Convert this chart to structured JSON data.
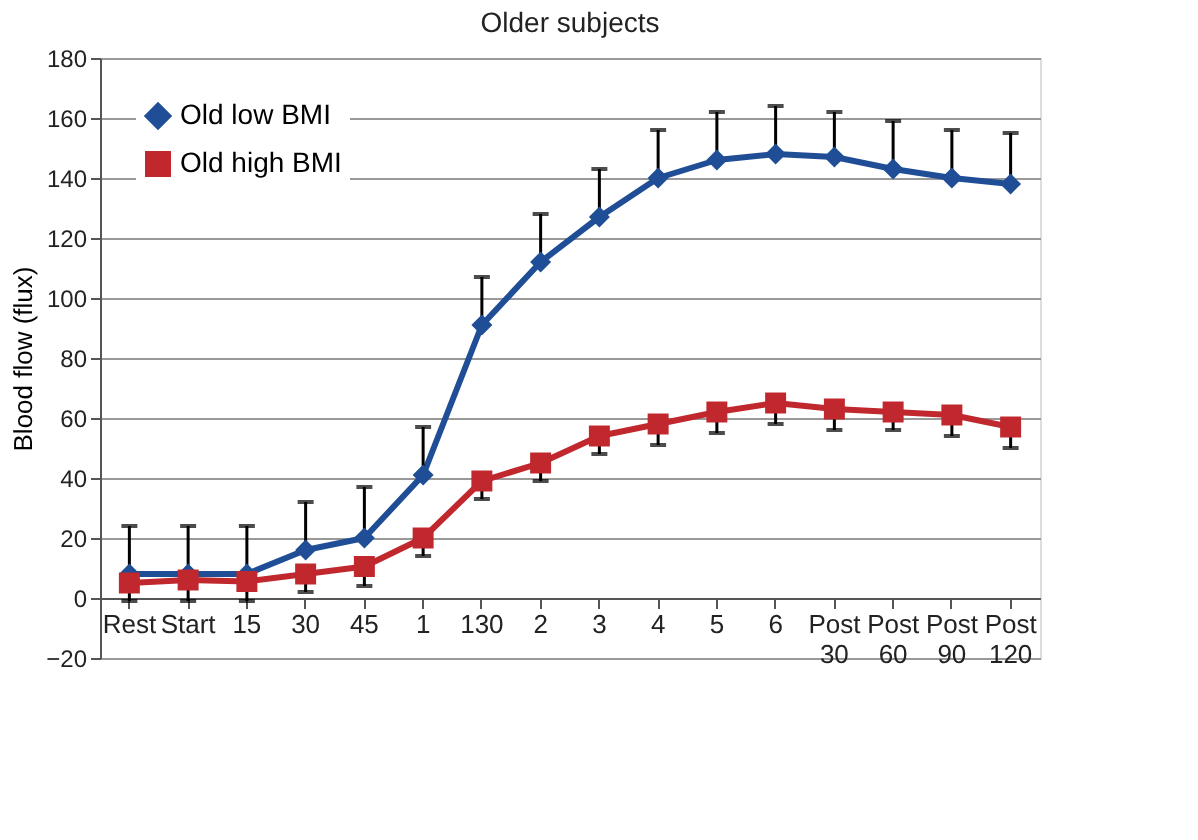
{
  "chart_data": {
    "type": "line",
    "title": "Older subjects",
    "ylabel": "Blood flow (flux)",
    "categories": [
      "Rest",
      "Start",
      "15",
      "30",
      "45",
      "1",
      "130",
      "2",
      "3",
      "4",
      "5",
      "6",
      "Post 30",
      "Post 60",
      "Post 90",
      "Post 120"
    ],
    "series": [
      {
        "name": "Old low BMI",
        "color": "#1f4e96",
        "marker": "diamond",
        "values": [
          8,
          8,
          8,
          16,
          20,
          41,
          91,
          112,
          127,
          140,
          146,
          148,
          147,
          143,
          140,
          138
        ],
        "errors": [
          [
            8,
            24
          ],
          [
            8,
            24
          ],
          [
            8,
            24
          ],
          [
            16,
            32
          ],
          [
            20,
            37
          ],
          [
            41,
            57
          ],
          [
            91,
            107
          ],
          [
            112,
            128
          ],
          [
            127,
            143
          ],
          [
            140,
            156
          ],
          [
            146,
            162
          ],
          [
            148,
            164
          ],
          [
            147,
            162
          ],
          [
            143,
            159
          ],
          [
            140,
            156
          ],
          [
            138,
            155
          ]
        ]
      },
      {
        "name": "Old high BMI",
        "color": "#c0282d",
        "marker": "square",
        "values": [
          5,
          6,
          5.5,
          8,
          10.5,
          20,
          39,
          45,
          54,
          58,
          62,
          65,
          63,
          62,
          61,
          57
        ],
        "errors": [
          [
            -1,
            5
          ],
          [
            -1,
            6
          ],
          [
            -1,
            5.5
          ],
          [
            2,
            8
          ],
          [
            4,
            10.5
          ],
          [
            14,
            20
          ],
          [
            33,
            39
          ],
          [
            39,
            45
          ],
          [
            48,
            54
          ],
          [
            51,
            58
          ],
          [
            55,
            62
          ],
          [
            58,
            65
          ],
          [
            56,
            63
          ],
          [
            56,
            62
          ],
          [
            54,
            61
          ],
          [
            50,
            57
          ]
        ]
      }
    ],
    "ylim": [
      -20,
      180
    ],
    "yticks": [
      -20,
      0,
      20,
      40,
      60,
      80,
      100,
      120,
      140,
      160,
      180
    ],
    "grid": "y",
    "legend": "top left",
    "line_style": "solid"
  }
}
